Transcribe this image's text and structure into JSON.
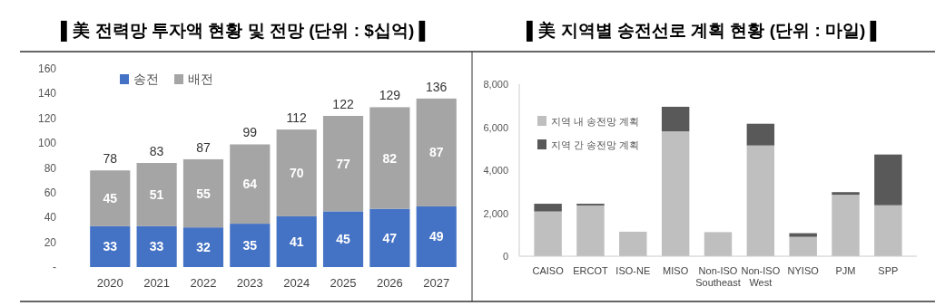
{
  "chart_data": [
    {
      "type": "bar",
      "title": "▌美 전력망 투자액 현황 및 전망 (단위 : $십억) ▌",
      "categories": [
        "2020",
        "2021",
        "2022",
        "2023",
        "2024",
        "2025",
        "2026",
        "2027"
      ],
      "stacked": true,
      "series": [
        {
          "name": "송전",
          "color": "#4472c4",
          "values": [
            33,
            33,
            32,
            35,
            41,
            45,
            47,
            49
          ]
        },
        {
          "name": "배전",
          "color": "#a5a5a5",
          "values": [
            45,
            51,
            55,
            64,
            70,
            77,
            82,
            87
          ]
        }
      ],
      "totals": [
        "78",
        "83",
        "87",
        "99",
        "112",
        "122",
        "129",
        "136"
      ],
      "data_labels": true,
      "legend": "top left",
      "grid": false,
      "ylim": [
        0,
        160
      ],
      "yticks": [
        {
          "value": 0,
          "label": "-"
        },
        20,
        40,
        60,
        80,
        100,
        120,
        140,
        160
      ]
    },
    {
      "type": "bar",
      "title": "▌美 지역별  송전선로 계획 현황 (단위 : 마일) ▌",
      "categories": [
        "CAISO",
        "ERCOT",
        "ISO-NE",
        "MISO",
        "Non-ISO Southeast",
        "Non-ISO West",
        "NYISO",
        "PJM",
        "SPP"
      ],
      "stacked": true,
      "series": [
        {
          "name": "지역 내 송전망 계획",
          "color": "#bfbfbf",
          "values": [
            2080,
            2360,
            1140,
            5810,
            1120,
            5150,
            900,
            2860,
            2370
          ]
        },
        {
          "name": "지역 간 송전망 계획",
          "color": "#595959",
          "values": [
            360,
            80,
            0,
            1140,
            0,
            1010,
            170,
            120,
            2360
          ]
        }
      ],
      "legend": "top left",
      "grid": false,
      "ylim": [
        0,
        8000
      ],
      "yticks": [
        0,
        {
          "value": 2000,
          "label": "2,000"
        },
        {
          "value": 4000,
          "label": "4,000"
        },
        {
          "value": 6000,
          "label": "6,000"
        },
        {
          "value": 8000,
          "label": "8,000"
        }
      ]
    }
  ]
}
